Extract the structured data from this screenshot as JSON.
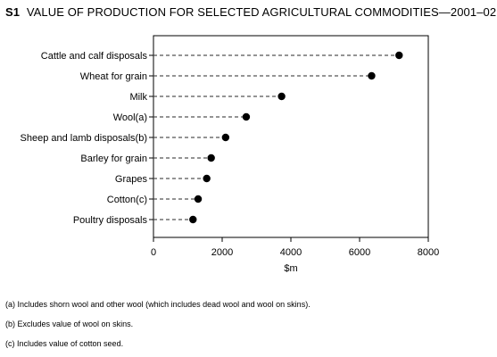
{
  "title_number": "S1",
  "title_text": "VALUE OF PRODUCTION FOR SELECTED AGRICULTURAL COMMODITIES—2001–02",
  "chart_data": {
    "type": "dot",
    "title": "VALUE OF PRODUCTION FOR SELECTED AGRICULTURAL COMMODITIES—2001–02",
    "categories": [
      "Cattle and calf disposals",
      "Wheat for grain",
      "Milk",
      "Wool(a)",
      "Sheep and lamb disposals(b)",
      "Barley for grain",
      "Grapes",
      "Cotton(c)",
      "Poultry disposals"
    ],
    "values": [
      7150,
      6350,
      3730,
      2700,
      2100,
      1680,
      1550,
      1300,
      1150
    ],
    "xlabel": "$m",
    "xlim": [
      0,
      8000
    ],
    "xticks": [
      0,
      2000,
      4000,
      6000,
      8000
    ],
    "grid": false,
    "legend": "none",
    "marker_color": "#000000",
    "line_color": "#555555"
  },
  "footnotes": [
    "(a)  Includes shorn wool and other wool (which includes dead wool and wool on skins).",
    "(b)  Excludes value of wool on skins.",
    "(c)  Includes value of cotton seed."
  ]
}
